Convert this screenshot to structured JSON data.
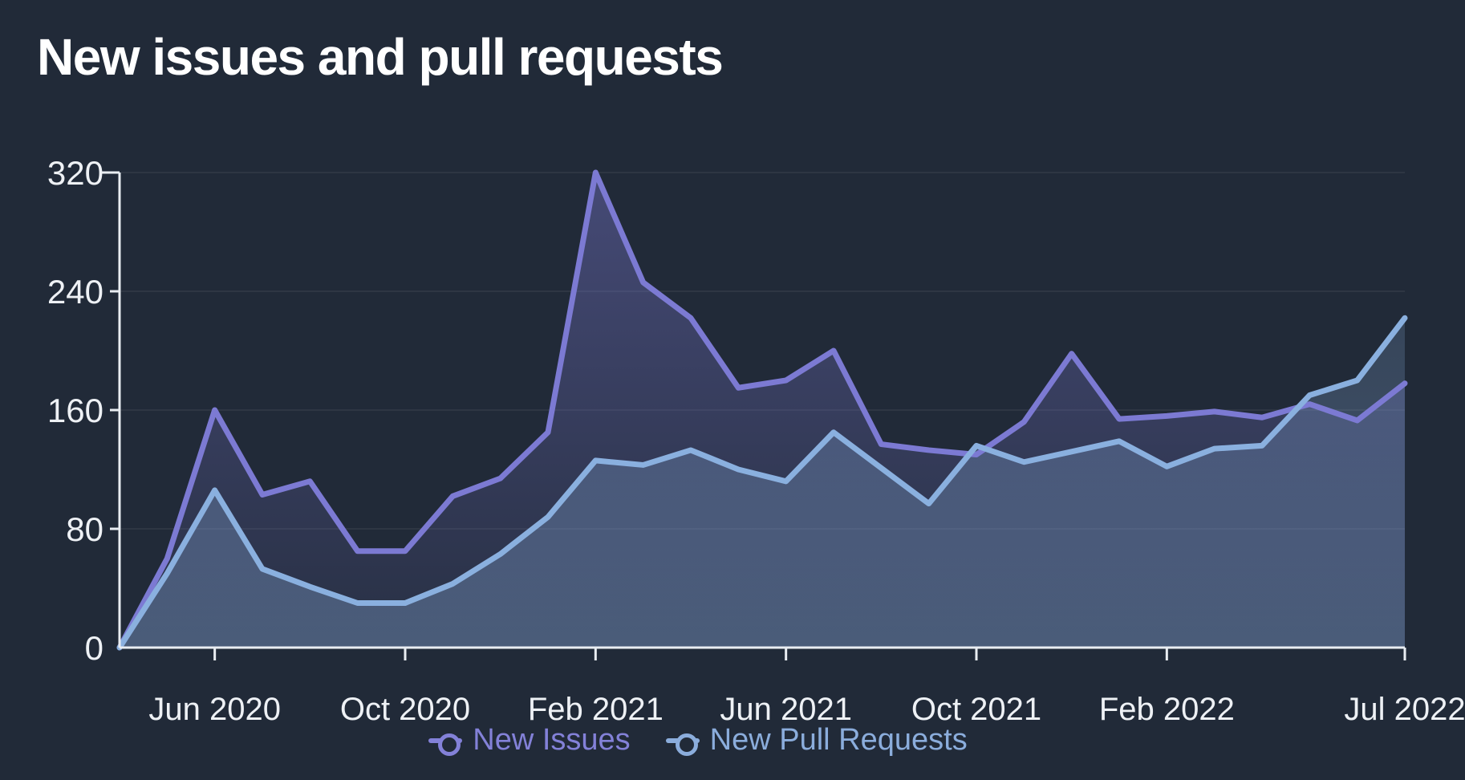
{
  "title": "New issues and pull requests",
  "colors": {
    "background": "#212a38",
    "title": "#ffffff",
    "axis": "#e9edf2",
    "tick_label": "#eef1f5",
    "grid": "rgba(255,255,255,0.08)",
    "issues_line": "#7c7ad3",
    "pull_requests_line": "#8ab0df"
  },
  "legend": [
    {
      "label": "New Issues",
      "color": "#8381d8"
    },
    {
      "label": "New Pull Requests",
      "color": "#8baddc"
    }
  ],
  "chart_data": {
    "type": "line",
    "title": "New issues and pull requests",
    "xlabel": "",
    "ylabel": "",
    "ylim": [
      0,
      320
    ],
    "y_ticks": [
      0,
      80,
      160,
      240,
      320
    ],
    "grid": "horizontal",
    "legend_position": "bottom",
    "x": [
      "Apr 2020",
      "May 2020",
      "Jun 2020",
      "Jul 2020",
      "Aug 2020",
      "Sep 2020",
      "Oct 2020",
      "Nov 2020",
      "Dec 2020",
      "Jan 2021",
      "Feb 2021",
      "Mar 2021",
      "Apr 2021",
      "May 2021",
      "Jun 2021",
      "Jul 2021",
      "Aug 2021",
      "Sep 2021",
      "Oct 2021",
      "Nov 2021",
      "Dec 2021",
      "Jan 2022",
      "Feb 2022",
      "Mar 2022",
      "Apr 2022",
      "May 2022",
      "Jun 2022",
      "Jul 2022"
    ],
    "x_tick_labels": [
      "Jun 2020",
      "Oct 2020",
      "Feb 2021",
      "Jun 2021",
      "Oct 2021",
      "Feb 2022",
      "Jul 2022"
    ],
    "x_tick_indices": [
      2,
      6,
      10,
      14,
      18,
      22,
      27
    ],
    "series": [
      {
        "name": "New Issues",
        "color": "#7c7ad3",
        "fill_top": "rgba(124,122,211,0.40)",
        "fill_bottom": "rgba(124,122,211,0.08)",
        "values": [
          0,
          60,
          160,
          103,
          112,
          65,
          65,
          102,
          114,
          145,
          320,
          246,
          222,
          175,
          180,
          200,
          137,
          133,
          130,
          152,
          198,
          154,
          156,
          159,
          155,
          164,
          153,
          178
        ]
      },
      {
        "name": "New Pull Requests",
        "color": "#8ab0df",
        "fill_top": "rgba(138,176,223,0.14)",
        "fill_bottom": "rgba(138,176,223,0.34)",
        "values": [
          0,
          50,
          106,
          53,
          41,
          30,
          30,
          43,
          63,
          88,
          126,
          123,
          133,
          120,
          112,
          145,
          121,
          97,
          136,
          125,
          132,
          139,
          122,
          134,
          136,
          170,
          180,
          222
        ]
      }
    ]
  }
}
